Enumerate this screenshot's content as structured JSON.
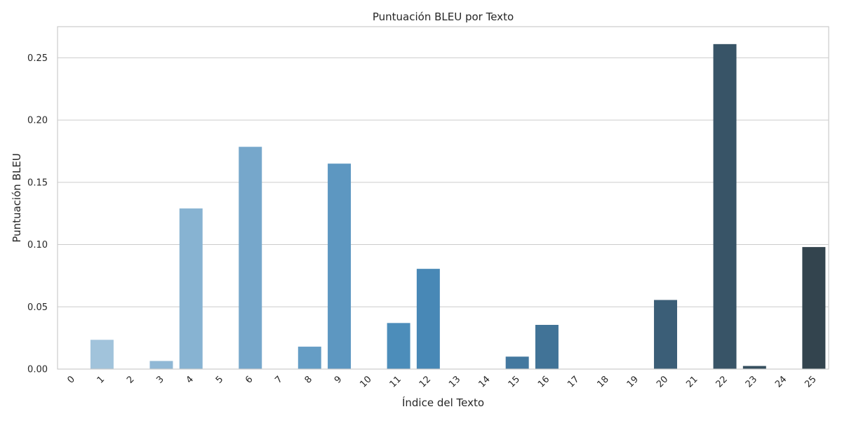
{
  "chart_data": {
    "type": "bar",
    "title": "Puntuación BLEU por Texto",
    "xlabel": "Índice del Texto",
    "ylabel": "Puntuación BLEU",
    "categories": [
      "0",
      "1",
      "2",
      "3",
      "4",
      "5",
      "6",
      "7",
      "8",
      "9",
      "10",
      "11",
      "12",
      "13",
      "14",
      "15",
      "16",
      "17",
      "18",
      "19",
      "20",
      "21",
      "22",
      "23",
      "24",
      "25"
    ],
    "values": [
      0,
      0.0235,
      0,
      0.0065,
      0.129,
      0,
      0.1785,
      0,
      0.018,
      0.165,
      0,
      0.037,
      0.0805,
      0,
      0,
      0.01,
      0.0355,
      0,
      0,
      0,
      0.0555,
      0,
      0.261,
      0.0025,
      0,
      0.098
    ],
    "ylim": [
      0,
      0.275
    ],
    "yticks": [
      "0.00",
      "0.05",
      "0.10",
      "0.15",
      "0.20",
      "0.25"
    ],
    "grid": "horizontal",
    "legend": "none",
    "x_tick_rotation": "45°",
    "colors": [
      "#a3c4dc",
      "#a1c3db",
      "#98bdd8",
      "#90b8d5",
      "#87b3d2",
      "#7facce",
      "#76a7cb",
      "#6da2c8",
      "#659dc5",
      "#5d97c1",
      "#5492be",
      "#4c8dba",
      "#4888b6",
      "#4683af",
      "#457ea7",
      "#43789f",
      "#417397",
      "#406e8f",
      "#3e6987",
      "#3c647f",
      "#3b5e77",
      "#39596f",
      "#385467",
      "#364f5f",
      "#344956",
      "#33444e"
    ]
  }
}
